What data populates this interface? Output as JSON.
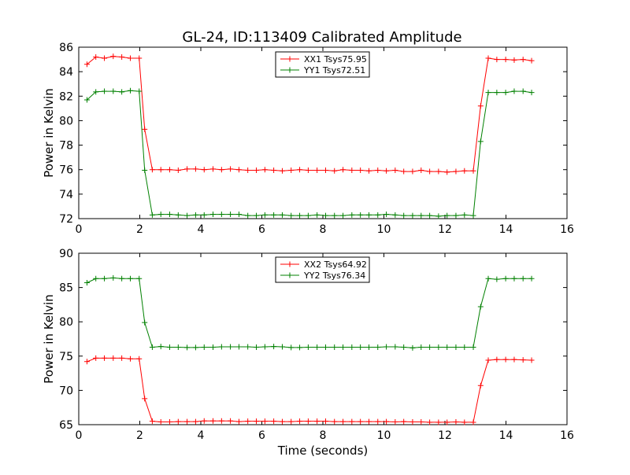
{
  "title": "GL-24, ID:113409 Calibrated Amplitude",
  "chart_data": [
    {
      "type": "line",
      "title": "GL-24, ID:113409 Calibrated Amplitude",
      "xlabel": "",
      "ylabel": "Power in Kelvin",
      "xlim": [
        0,
        16
      ],
      "ylim": [
        72,
        86
      ],
      "xticks": [
        "0",
        "2",
        "4",
        "6",
        "8",
        "10",
        "12",
        "14",
        "16"
      ],
      "yticks": [
        "72",
        "74",
        "76",
        "78",
        "80",
        "82",
        "84",
        "86"
      ],
      "grid": false,
      "legend_position": "top-center",
      "x": [
        0.27,
        0.56,
        0.84,
        1.13,
        1.41,
        1.69,
        1.98,
        2.16,
        2.41,
        2.69,
        2.98,
        3.26,
        3.55,
        3.83,
        4.11,
        4.4,
        4.68,
        4.97,
        5.25,
        5.54,
        5.82,
        6.1,
        6.39,
        6.67,
        6.96,
        7.24,
        7.52,
        7.81,
        8.09,
        8.38,
        8.66,
        8.95,
        9.23,
        9.51,
        9.8,
        10.08,
        10.37,
        10.65,
        10.94,
        11.22,
        11.5,
        11.79,
        12.07,
        12.36,
        12.64,
        12.93,
        13.17,
        13.42,
        13.7,
        13.99,
        14.27,
        14.56,
        14.84
      ],
      "series": [
        {
          "name": "XX1 Tsys75.95",
          "color": "#ff0000",
          "values": [
            84.6,
            85.2,
            85.1,
            85.25,
            85.2,
            85.1,
            85.1,
            79.3,
            76.0,
            76.0,
            76.0,
            75.95,
            76.05,
            76.05,
            76.0,
            76.05,
            76.0,
            76.05,
            76.0,
            75.95,
            75.95,
            76.0,
            75.95,
            75.9,
            75.95,
            76.0,
            75.95,
            75.95,
            75.95,
            75.9,
            76.0,
            75.95,
            75.95,
            75.9,
            75.95,
            75.9,
            75.95,
            75.85,
            75.85,
            75.95,
            75.85,
            75.85,
            75.8,
            75.85,
            75.9,
            75.9,
            81.2,
            85.1,
            85.0,
            85.0,
            84.95,
            85.0,
            84.9
          ]
        },
        {
          "name": "YY1 Tsys72.51",
          "color": "#008000",
          "values": [
            81.7,
            82.35,
            82.4,
            82.4,
            82.35,
            82.45,
            82.4,
            75.95,
            72.3,
            72.35,
            72.35,
            72.3,
            72.25,
            72.3,
            72.3,
            72.35,
            72.35,
            72.35,
            72.35,
            72.25,
            72.25,
            72.3,
            72.3,
            72.3,
            72.25,
            72.25,
            72.25,
            72.3,
            72.25,
            72.25,
            72.25,
            72.3,
            72.3,
            72.3,
            72.3,
            72.35,
            72.3,
            72.25,
            72.25,
            72.25,
            72.25,
            72.2,
            72.25,
            72.25,
            72.3,
            72.25,
            78.3,
            82.3,
            82.3,
            82.3,
            82.4,
            82.4,
            82.3
          ]
        }
      ]
    },
    {
      "type": "line",
      "title": "",
      "xlabel": "Time (seconds)",
      "ylabel": "Power in Kelvin",
      "xlim": [
        0,
        16
      ],
      "ylim": [
        65,
        90
      ],
      "xticks": [
        "0",
        "2",
        "4",
        "6",
        "8",
        "10",
        "12",
        "14",
        "16"
      ],
      "yticks": [
        "65",
        "70",
        "75",
        "80",
        "85",
        "90"
      ],
      "grid": false,
      "legend_position": "top-center",
      "x": [
        0.27,
        0.56,
        0.84,
        1.13,
        1.41,
        1.69,
        1.98,
        2.16,
        2.41,
        2.69,
        2.98,
        3.26,
        3.55,
        3.83,
        4.11,
        4.4,
        4.68,
        4.97,
        5.25,
        5.54,
        5.82,
        6.1,
        6.39,
        6.67,
        6.96,
        7.24,
        7.52,
        7.81,
        8.09,
        8.38,
        8.66,
        8.95,
        9.23,
        9.51,
        9.8,
        10.08,
        10.37,
        10.65,
        10.94,
        11.22,
        11.5,
        11.79,
        12.07,
        12.36,
        12.64,
        12.93,
        13.17,
        13.42,
        13.7,
        13.99,
        14.27,
        14.56,
        14.84
      ],
      "series": [
        {
          "name": "XX2 Tsys64.92",
          "color": "#ff0000",
          "values": [
            74.2,
            74.7,
            74.7,
            74.7,
            74.7,
            74.6,
            74.6,
            68.8,
            65.5,
            65.4,
            65.4,
            65.45,
            65.45,
            65.45,
            65.55,
            65.55,
            65.55,
            65.55,
            65.45,
            65.5,
            65.5,
            65.5,
            65.5,
            65.45,
            65.45,
            65.5,
            65.5,
            65.5,
            65.5,
            65.45,
            65.45,
            65.45,
            65.45,
            65.45,
            65.45,
            65.45,
            65.4,
            65.45,
            65.4,
            65.4,
            65.35,
            65.35,
            65.35,
            65.4,
            65.35,
            65.35,
            70.7,
            74.4,
            74.5,
            74.5,
            74.5,
            74.45,
            74.4
          ]
        },
        {
          "name": "YY2 Tsys76.34",
          "color": "#008000",
          "values": [
            85.7,
            86.3,
            86.3,
            86.4,
            86.3,
            86.3,
            86.3,
            79.9,
            76.3,
            76.4,
            76.3,
            76.3,
            76.25,
            76.25,
            76.3,
            76.3,
            76.35,
            76.35,
            76.35,
            76.35,
            76.3,
            76.35,
            76.4,
            76.35,
            76.25,
            76.25,
            76.3,
            76.3,
            76.3,
            76.3,
            76.3,
            76.3,
            76.3,
            76.3,
            76.3,
            76.35,
            76.35,
            76.3,
            76.2,
            76.3,
            76.3,
            76.3,
            76.3,
            76.3,
            76.3,
            76.3,
            82.2,
            86.3,
            86.2,
            86.3,
            86.3,
            86.3,
            86.3
          ]
        }
      ]
    }
  ]
}
